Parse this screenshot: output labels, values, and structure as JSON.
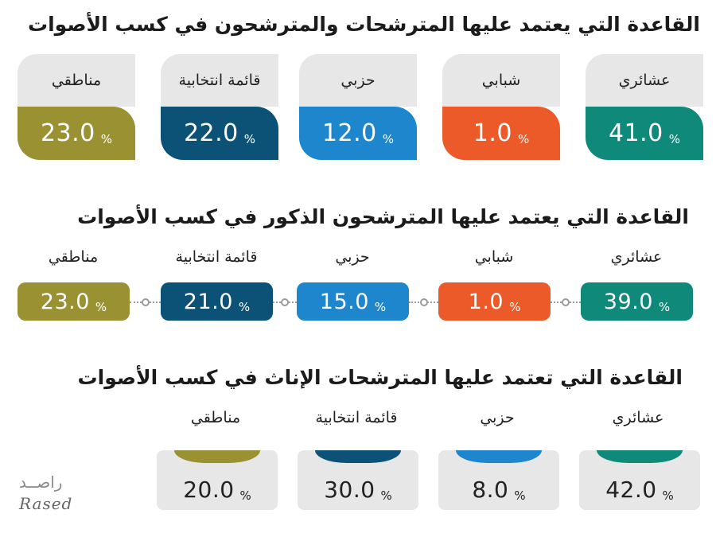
{
  "chart_data": [
    {
      "type": "bar",
      "title": "القاعدة التي يعتمد عليها المترشحات والمترشحون في كسب الأصوات",
      "categories": [
        "عشائري",
        "شبابي",
        "حزبي",
        "قائمة انتخابية",
        "مناطقي"
      ],
      "values": [
        41.0,
        1.0,
        12.0,
        22.0,
        23.0
      ],
      "colors": [
        "#0f8a7a",
        "#ec5a2a",
        "#1e86cc",
        "#0c5277",
        "#9a9232"
      ]
    },
    {
      "type": "bar",
      "title": "القاعدة التي يعتمد عليها المترشحون الذكور في كسب الأصوات",
      "categories": [
        "عشائري",
        "شبابي",
        "حزبي",
        "قائمة انتخابية",
        "مناطقي"
      ],
      "values": [
        39.0,
        1.0,
        15.0,
        21.0,
        23.0
      ],
      "colors": [
        "#0f8a7a",
        "#ec5a2a",
        "#1e86cc",
        "#0c5277",
        "#9a9232"
      ]
    },
    {
      "type": "bar",
      "title": "القاعدة التي تعتمد عليها المترشحات الإناث في كسب الأصوات",
      "categories": [
        "عشائري",
        "حزبي",
        "قائمة انتخابية",
        "مناطقي"
      ],
      "values": [
        42.0,
        8.0,
        30.0,
        20.0
      ],
      "colors": [
        "#0f8a7a",
        "#1e86cc",
        "#0c5277",
        "#9a9232"
      ]
    }
  ],
  "percent_sign": "%",
  "logo": {
    "arabic": "راصــد",
    "latin": "Rased"
  }
}
